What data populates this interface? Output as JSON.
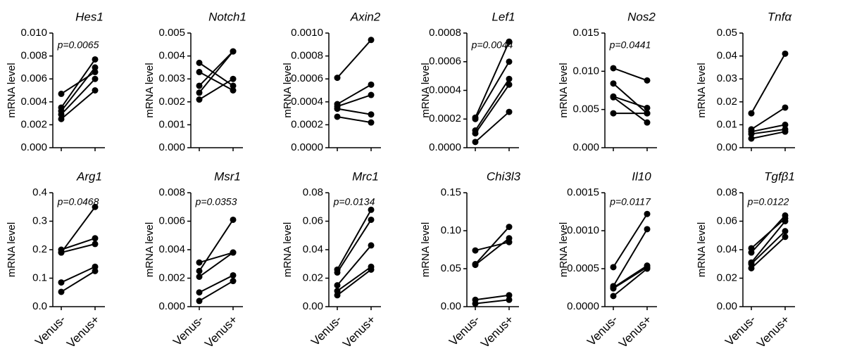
{
  "chart_data": [
    {
      "type": "line",
      "title": "Hes1",
      "ylabel": "mRNA level",
      "annotation": "p=0.0065",
      "categories": [
        null,
        null
      ],
      "color": "#000000",
      "ylim": [
        0,
        0.01
      ],
      "yticks": [
        {
          "value": 0,
          "label": "0.000"
        },
        {
          "value": 0.002,
          "label": "0.002"
        },
        {
          "value": 0.004,
          "label": "0.004"
        },
        {
          "value": 0.006,
          "label": "0.006"
        },
        {
          "value": 0.008,
          "label": "0.008"
        },
        {
          "value": 0.01,
          "label": "0.010"
        }
      ],
      "series": [
        {
          "values": [
            0.0047,
            0.0066
          ]
        },
        {
          "values": [
            0.0035,
            0.0077
          ]
        },
        {
          "values": [
            0.0032,
            0.007
          ]
        },
        {
          "values": [
            0.0029,
            0.006
          ]
        },
        {
          "values": [
            0.0025,
            0.005
          ]
        }
      ]
    },
    {
      "type": "line",
      "title": "Notch1",
      "ylabel": "mRNA level",
      "categories": [
        null,
        null
      ],
      "color": "#000000",
      "ylim": [
        0,
        0.005
      ],
      "yticks": [
        {
          "value": 0,
          "label": "0.000"
        },
        {
          "value": 0.001,
          "label": "0.001"
        },
        {
          "value": 0.002,
          "label": "0.002"
        },
        {
          "value": 0.003,
          "label": "0.003"
        },
        {
          "value": 0.004,
          "label": "0.004"
        },
        {
          "value": 0.005,
          "label": "0.005"
        }
      ],
      "series": [
        {
          "values": [
            0.0037,
            0.0027
          ]
        },
        {
          "values": [
            0.0033,
            0.0025
          ]
        },
        {
          "values": [
            0.0027,
            0.0042
          ]
        },
        {
          "values": [
            0.0024,
            0.0042
          ]
        },
        {
          "values": [
            0.0021,
            0.003
          ]
        }
      ]
    },
    {
      "type": "line",
      "title": "Axin2",
      "ylabel": "mRNA level",
      "categories": [
        null,
        null
      ],
      "color": "#000000",
      "ylim": [
        0,
        0.001
      ],
      "yticks": [
        {
          "value": 0,
          "label": "0.0000"
        },
        {
          "value": 0.0002,
          "label": "0.0002"
        },
        {
          "value": 0.0004,
          "label": "0.0004"
        },
        {
          "value": 0.0006,
          "label": "0.0006"
        },
        {
          "value": 0.0008,
          "label": "0.0008"
        },
        {
          "value": 0.001,
          "label": "0.0010"
        }
      ],
      "series": [
        {
          "values": [
            0.00061,
            0.00094
          ]
        },
        {
          "values": [
            0.00038,
            0.00055
          ]
        },
        {
          "values": [
            0.00036,
            0.00046
          ]
        },
        {
          "values": [
            0.00034,
            0.00029
          ]
        },
        {
          "values": [
            0.00027,
            0.00022
          ]
        }
      ]
    },
    {
      "type": "line",
      "title": "Lef1",
      "ylabel": "mRNA level",
      "annotation": "p=0.0044",
      "categories": [
        null,
        null
      ],
      "color": "#000000",
      "ylim": [
        0,
        0.0008
      ],
      "yticks": [
        {
          "value": 0,
          "label": "0.0000"
        },
        {
          "value": 0.0002,
          "label": "0.0002"
        },
        {
          "value": 0.0004,
          "label": "0.0004"
        },
        {
          "value": 0.0006,
          "label": "0.0006"
        },
        {
          "value": 0.0008,
          "label": "0.0008"
        }
      ],
      "series": [
        {
          "values": [
            0.00021,
            0.00074
          ]
        },
        {
          "values": [
            0.0002,
            0.0006
          ]
        },
        {
          "values": [
            0.00012,
            0.00048
          ]
        },
        {
          "values": [
            0.0001,
            0.00044
          ]
        },
        {
          "values": [
            4e-05,
            0.00025
          ]
        }
      ]
    },
    {
      "type": "line",
      "title": "Nos2",
      "ylabel": "mRNA level",
      "annotation": "p=0.0441",
      "categories": [
        null,
        null
      ],
      "color": "#000000",
      "ylim": [
        0,
        0.015
      ],
      "yticks": [
        {
          "value": 0,
          "label": "0.000"
        },
        {
          "value": 0.005,
          "label": "0.005"
        },
        {
          "value": 0.01,
          "label": "0.010"
        },
        {
          "value": 0.015,
          "label": "0.015"
        }
      ],
      "series": [
        {
          "values": [
            0.0104,
            0.0088
          ]
        },
        {
          "values": [
            0.0084,
            0.0045
          ]
        },
        {
          "values": [
            0.0067,
            0.0052
          ]
        },
        {
          "values": [
            0.0066,
            0.0033
          ]
        },
        {
          "values": [
            0.0045,
            0.0045
          ]
        }
      ]
    },
    {
      "type": "line",
      "title": "Tnfα",
      "ylabel": "mRNA level",
      "categories": [
        null,
        null
      ],
      "color": "#000000",
      "ylim": [
        0,
        0.05
      ],
      "yticks": [
        {
          "value": 0,
          "label": "0.00"
        },
        {
          "value": 0.01,
          "label": "0.01"
        },
        {
          "value": 0.02,
          "label": "0.02"
        },
        {
          "value": 0.03,
          "label": "0.03"
        },
        {
          "value": 0.04,
          "label": "0.04"
        },
        {
          "value": 0.05,
          "label": "0.05"
        }
      ],
      "series": [
        {
          "values": [
            0.015,
            0.041
          ]
        },
        {
          "values": [
            0.008,
            0.0175
          ]
        },
        {
          "values": [
            0.007,
            0.01
          ]
        },
        {
          "values": [
            0.006,
            0.008
          ]
        },
        {
          "values": [
            0.004,
            0.007
          ]
        }
      ]
    },
    {
      "type": "line",
      "title": "Arg1",
      "ylabel": "mRNA level",
      "annotation": "p=0.0468",
      "categories": [
        "Venus-",
        "Venus+"
      ],
      "color": "#000000",
      "ylim": [
        0,
        0.4
      ],
      "yticks": [
        {
          "value": 0,
          "label": "0.0"
        },
        0.1,
        0.2,
        0.3,
        0.4
      ],
      "series": [
        {
          "values": [
            0.2,
            0.24
          ]
        },
        {
          "values": [
            0.19,
            0.35
          ]
        },
        {
          "values": [
            0.19,
            0.22
          ]
        },
        {
          "values": [
            0.085,
            0.14
          ]
        },
        {
          "values": [
            0.052,
            0.125
          ]
        }
      ]
    },
    {
      "type": "line",
      "title": "Msr1",
      "ylabel": "mRNA level",
      "annotation": "p=0.0353",
      "categories": [
        "Venus-",
        "Venus+"
      ],
      "color": "#000000",
      "ylim": [
        0,
        0.008
      ],
      "yticks": [
        {
          "value": 0,
          "label": "0.000"
        },
        {
          "value": 0.002,
          "label": "0.002"
        },
        {
          "value": 0.004,
          "label": "0.004"
        },
        {
          "value": 0.006,
          "label": "0.006"
        },
        {
          "value": 0.008,
          "label": "0.008"
        }
      ],
      "series": [
        {
          "values": [
            0.0031,
            0.0038
          ]
        },
        {
          "values": [
            0.0025,
            0.0061
          ]
        },
        {
          "values": [
            0.0021,
            0.0038
          ]
        },
        {
          "values": [
            0.001,
            0.0022
          ]
        },
        {
          "values": [
            0.0004,
            0.0018
          ]
        }
      ]
    },
    {
      "type": "line",
      "title": "Mrc1",
      "ylabel": "mRNA level",
      "annotation": "p=0.0134",
      "categories": [
        "Venus-",
        "Venus+"
      ],
      "color": "#000000",
      "ylim": [
        0,
        0.08
      ],
      "yticks": [
        {
          "value": 0,
          "label": "0.00"
        },
        {
          "value": 0.02,
          "label": "0.02"
        },
        {
          "value": 0.04,
          "label": "0.04"
        },
        {
          "value": 0.06,
          "label": "0.06"
        },
        {
          "value": 0.08,
          "label": "0.08"
        }
      ],
      "series": [
        {
          "values": [
            0.026,
            0.068
          ]
        },
        {
          "values": [
            0.024,
            0.061
          ]
        },
        {
          "values": [
            0.015,
            0.043
          ]
        },
        {
          "values": [
            0.011,
            0.028
          ]
        },
        {
          "values": [
            0.008,
            0.026
          ]
        }
      ]
    },
    {
      "type": "line",
      "title": "Chi3l3",
      "ylabel": "mRNA level",
      "categories": [
        "Venus-",
        "Venus+"
      ],
      "color": "#000000",
      "ylim": [
        0,
        0.15
      ],
      "yticks": [
        {
          "value": 0,
          "label": "0.00"
        },
        0.05,
        {
          "value": 0.1,
          "label": "0.10"
        },
        0.15
      ],
      "series": [
        {
          "values": [
            0.074,
            0.085
          ]
        },
        {
          "values": [
            0.056,
            0.105
          ]
        },
        {
          "values": [
            0.055,
            0.09
          ]
        },
        {
          "values": [
            0.009,
            0.015
          ]
        },
        {
          "values": [
            0.004,
            0.009
          ]
        }
      ]
    },
    {
      "type": "line",
      "title": "Il10",
      "ylabel": "mRNA level",
      "annotation": "p=0.0117",
      "categories": [
        "Venus-",
        "Venus+"
      ],
      "color": "#000000",
      "ylim": [
        0,
        0.0015
      ],
      "yticks": [
        {
          "value": 0,
          "label": "0.0000"
        },
        {
          "value": 0.0005,
          "label": "0.0005"
        },
        {
          "value": 0.001,
          "label": "0.0010"
        },
        {
          "value": 0.0015,
          "label": "0.0015"
        }
      ],
      "series": [
        {
          "values": [
            0.00052,
            0.00122
          ]
        },
        {
          "values": [
            0.00027,
            0.00102
          ]
        },
        {
          "values": [
            0.00025,
            0.00054
          ]
        },
        {
          "values": [
            0.00024,
            0.00052
          ]
        },
        {
          "values": [
            0.00014,
            0.0005
          ]
        }
      ]
    },
    {
      "type": "line",
      "title": "Tgfβ1",
      "ylabel": "mRNA level",
      "annotation": "p=0.0122",
      "categories": [
        "Venus-",
        "Venus+"
      ],
      "color": "#000000",
      "ylim": [
        0,
        0.08
      ],
      "yticks": [
        {
          "value": 0,
          "label": "0.00"
        },
        {
          "value": 0.02,
          "label": "0.02"
        },
        {
          "value": 0.04,
          "label": "0.04"
        },
        {
          "value": 0.06,
          "label": "0.06"
        },
        {
          "value": 0.08,
          "label": "0.08"
        }
      ],
      "series": [
        {
          "values": [
            0.041,
            0.062
          ]
        },
        {
          "values": [
            0.038,
            0.064
          ]
        },
        {
          "values": [
            0.031,
            0.06
          ]
        },
        {
          "values": [
            0.03,
            0.053
          ]
        },
        {
          "values": [
            0.027,
            0.049
          ]
        }
      ]
    }
  ]
}
